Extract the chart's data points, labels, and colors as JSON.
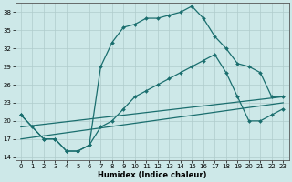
{
  "xlabel": "Humidex (Indice chaleur)",
  "bg_color": "#cde8e8",
  "grid_color": "#b0cccc",
  "line_color": "#1a6e6e",
  "xlim_min": -0.5,
  "xlim_max": 23.5,
  "ylim_min": 13.5,
  "ylim_max": 39.5,
  "yticks": [
    14,
    17,
    20,
    23,
    26,
    29,
    32,
    35,
    38
  ],
  "xticks": [
    0,
    1,
    2,
    3,
    4,
    5,
    6,
    7,
    8,
    9,
    10,
    11,
    12,
    13,
    14,
    15,
    16,
    17,
    18,
    19,
    20,
    21,
    22,
    23
  ],
  "curve1_x": [
    0,
    1,
    2,
    3,
    4,
    5,
    6,
    7,
    8,
    9,
    10,
    11,
    12,
    13,
    14,
    15,
    16,
    17,
    18,
    19,
    20,
    21,
    22,
    23
  ],
  "curve1_y": [
    21,
    19,
    17,
    17,
    15,
    15,
    16,
    29,
    33,
    35.5,
    36,
    37,
    37,
    37.5,
    38,
    39,
    37,
    34,
    32,
    29.5,
    29,
    28,
    24,
    24
  ],
  "curve2_x": [
    0,
    2,
    3,
    4,
    5,
    6,
    7,
    8,
    9,
    10,
    11,
    12,
    13,
    14,
    15,
    16,
    17,
    18,
    19,
    20,
    21,
    22,
    23
  ],
  "curve2_y": [
    21,
    17,
    17,
    15,
    15,
    16,
    19,
    20,
    22,
    24,
    25,
    26,
    27,
    28,
    29,
    30,
    31,
    28,
    24,
    20,
    20,
    21,
    22
  ],
  "line1_x": [
    0,
    23
  ],
  "line1_y": [
    19,
    24
  ],
  "line2_x": [
    0,
    23
  ],
  "line2_y": [
    17,
    23
  ]
}
